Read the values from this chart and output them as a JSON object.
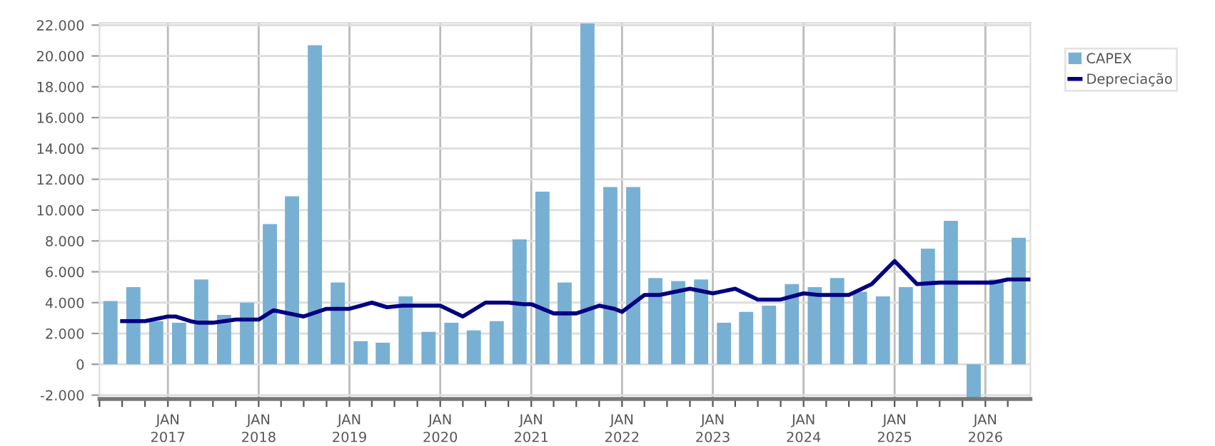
{
  "chart_data": {
    "type": "bar",
    "x": [
      "2016-05-15",
      "2016-08-15",
      "2016-11-15",
      "2017-02-15",
      "2017-05-15",
      "2017-08-15",
      "2017-11-15",
      "2018-02-15",
      "2018-05-15",
      "2018-08-15",
      "2018-11-15",
      "2019-02-15",
      "2019-05-15",
      "2019-08-15",
      "2019-11-15",
      "2020-02-15",
      "2020-05-15",
      "2020-08-15",
      "2020-11-15",
      "2021-02-15",
      "2021-05-15",
      "2021-08-15",
      "2021-11-15",
      "2022-02-15",
      "2022-05-15",
      "2022-08-15",
      "2022-11-15",
      "2023-02-15",
      "2023-05-15",
      "2023-08-15",
      "2023-11-15",
      "2024-02-15",
      "2024-05-15",
      "2024-08-15",
      "2024-11-15",
      "2025-02-15",
      "2025-05-15",
      "2025-08-15",
      "2025-11-15",
      "2026-02-15",
      "2026-05-15"
    ],
    "series": [
      {
        "name": "CAPEX",
        "color": "#78b0d4",
        "values": [
          4100,
          5000,
          2800,
          2700,
          5500,
          3200,
          4000,
          9100,
          10900,
          20700,
          5300,
          1500,
          1400,
          4400,
          2100,
          2700,
          2200,
          2800,
          8100,
          11200,
          5300,
          22100,
          11500,
          11500,
          5600,
          5400,
          5500,
          2700,
          3400,
          3800,
          5200,
          5000,
          5600,
          4700,
          4400,
          5000,
          7500,
          9300,
          -2200,
          5500,
          8200
        ]
      },
      {
        "name": "Depreciação",
        "type": "line",
        "color": "#000080",
        "x": [
          "2016-07",
          "2016-10",
          "2017-01",
          "2017-02",
          "2017-04",
          "2017-05",
          "2017-07",
          "2017-10",
          "2018-01",
          "2018-03",
          "2018-07",
          "2018-10",
          "2019-01",
          "2019-04",
          "2019-06",
          "2019-08",
          "2020-01",
          "2020-04",
          "2020-07",
          "2020-10",
          "2020-12",
          "2021-01",
          "2021-04",
          "2021-07",
          "2021-10",
          "2021-12",
          "2022-01",
          "2022-04",
          "2022-06",
          "2022-10",
          "2023-01",
          "2023-04",
          "2023-07",
          "2023-10",
          "2024-01",
          "2024-03",
          "2024-07",
          "2024-10",
          "2025-01",
          "2025-04",
          "2025-07",
          "2026-01",
          "2026-02",
          "2026-04",
          "2026-07"
        ],
        "values": [
          2800,
          2800,
          3100,
          3100,
          2800,
          2700,
          2700,
          2900,
          2900,
          3500,
          3100,
          3600,
          3600,
          4000,
          3700,
          3800,
          3800,
          3100,
          4000,
          4000,
          3900,
          3900,
          3300,
          3300,
          3800,
          3600,
          3400,
          4500,
          4500,
          4900,
          4600,
          4900,
          4200,
          4200,
          4600,
          4500,
          4500,
          5200,
          6700,
          5200,
          5300,
          5300,
          5300,
          5500,
          5500
        ]
      }
    ],
    "xlim": [
      "2016-04-01",
      "2026-07-01"
    ],
    "xticks": [
      {
        "value": "2016-04-01",
        "label": null
      },
      {
        "value": "2016-07-01",
        "label": null
      },
      {
        "value": "2016-10-01",
        "label": null
      },
      {
        "value": "2017-01-01",
        "label": "JAN\n2017"
      },
      {
        "value": "2017-04-01",
        "label": null
      },
      {
        "value": "2017-07-01",
        "label": null
      },
      {
        "value": "2017-10-01",
        "label": null
      },
      {
        "value": "2018-01-01",
        "label": "JAN\n2018"
      },
      {
        "value": "2018-04-01",
        "label": null
      },
      {
        "value": "2018-07-01",
        "label": null
      },
      {
        "value": "2018-10-01",
        "label": null
      },
      {
        "value": "2019-01-01",
        "label": "JAN\n2019"
      },
      {
        "value": "2019-04-01",
        "label": null
      },
      {
        "value": "2019-07-01",
        "label": null
      },
      {
        "value": "2019-10-01",
        "label": null
      },
      {
        "value": "2020-01-01",
        "label": "JAN\n2020"
      },
      {
        "value": "2020-04-01",
        "label": null
      },
      {
        "value": "2020-07-01",
        "label": null
      },
      {
        "value": "2020-10-01",
        "label": null
      },
      {
        "value": "2021-01-01",
        "label": "JAN\n2021"
      },
      {
        "value": "2021-04-01",
        "label": null
      },
      {
        "value": "2021-07-01",
        "label": null
      },
      {
        "value": "2021-10-01",
        "label": null
      },
      {
        "value": "2022-01-01",
        "label": "JAN\n2022"
      },
      {
        "value": "2022-04-01",
        "label": null
      },
      {
        "value": "2022-07-01",
        "label": null
      },
      {
        "value": "2022-10-01",
        "label": null
      },
      {
        "value": "2023-01-01",
        "label": "JAN\n2023"
      },
      {
        "value": "2023-04-01",
        "label": null
      },
      {
        "value": "2023-07-01",
        "label": null
      },
      {
        "value": "2023-10-01",
        "label": null
      },
      {
        "value": "2024-01-01",
        "label": "JAN\n2024"
      },
      {
        "value": "2024-04-01",
        "label": null
      },
      {
        "value": "2024-07-01",
        "label": null
      },
      {
        "value": "2024-10-01",
        "label": null
      },
      {
        "value": "2025-01-01",
        "label": "JAN\n2025"
      },
      {
        "value": "2025-04-01",
        "label": null
      },
      {
        "value": "2025-07-01",
        "label": null
      },
      {
        "value": "2025-10-01",
        "label": null
      },
      {
        "value": "2026-01-01",
        "label": "JAN\n2026"
      },
      {
        "value": "2026-04-01",
        "label": null
      }
    ],
    "ylim": [
      -2250,
      22150
    ],
    "yticks": [
      {
        "value": -2000,
        "label": "-2.000"
      },
      {
        "value": 0,
        "label": "0"
      },
      {
        "value": 2000,
        "label": "2.000"
      },
      {
        "value": 4000,
        "label": "4.000"
      },
      {
        "value": 6000,
        "label": "6.000"
      },
      {
        "value": 8000,
        "label": "8.000"
      },
      {
        "value": 10000,
        "label": "10.000"
      },
      {
        "value": 12000,
        "label": "12.000"
      },
      {
        "value": 14000,
        "label": "14.000"
      },
      {
        "value": 16000,
        "label": "16.000"
      },
      {
        "value": 18000,
        "label": "18.000"
      },
      {
        "value": 20000,
        "label": "20.000"
      },
      {
        "value": 22000,
        "label": "22.000"
      }
    ],
    "grid": true,
    "legend": "top right",
    "line_style": "solid",
    "marker": "none"
  }
}
